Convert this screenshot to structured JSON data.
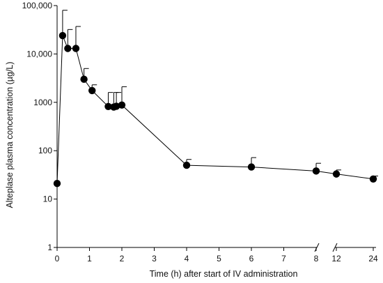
{
  "chart_data": {
    "type": "scatter",
    "title": "",
    "xlabel": "Time (h) after start of IV administration",
    "ylabel": "Alteplase plasma concentration (µg/L)",
    "y_scale": "log",
    "ylim": [
      1,
      100000
    ],
    "x_axis_break": "between 8 and 12",
    "y_tick_labels": [
      "1",
      "10",
      "100",
      "1000",
      "10,000",
      "100,000"
    ],
    "x_tick_labels": [
      "0",
      "1",
      "2",
      "3",
      "4",
      "5",
      "6",
      "7",
      "8",
      "12",
      "24"
    ],
    "grid": false,
    "legend": "none",
    "points": [
      {
        "x": 0,
        "y": 21,
        "y_upper": null
      },
      {
        "x": 0.17,
        "y": 24000,
        "y_upper": 80000
      },
      {
        "x": 0.33,
        "y": 13000,
        "y_upper": 32000
      },
      {
        "x": 0.58,
        "y": 13000,
        "y_upper": 37000
      },
      {
        "x": 0.83,
        "y": 3000,
        "y_upper": 5000
      },
      {
        "x": 1.08,
        "y": 1750,
        "y_upper": 2300
      },
      {
        "x": 1.58,
        "y": 820,
        "y_upper": 1600
      },
      {
        "x": 1.75,
        "y": 800,
        "y_upper": 1600
      },
      {
        "x": 1.83,
        "y": 830,
        "y_upper": 1600
      },
      {
        "x": 2.0,
        "y": 880,
        "y_upper": 2100
      },
      {
        "x": 4,
        "y": 50,
        "y_upper": 66
      },
      {
        "x": 6,
        "y": 46,
        "y_upper": 72
      },
      {
        "x": 8,
        "y": 38,
        "y_upper": 55
      },
      {
        "x": 12,
        "y": 33,
        "y_upper": 40
      },
      {
        "x": 24,
        "y": 26,
        "y_upper": 30
      }
    ]
  }
}
